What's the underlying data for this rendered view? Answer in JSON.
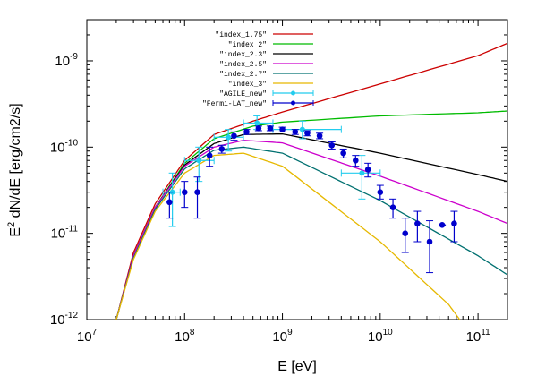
{
  "chart_data": {
    "type": "line",
    "xscale": "log",
    "yscale": "log",
    "xlabel": "E [eV]",
    "ylabel_base": "E",
    "ylabel_exp": "2",
    "ylabel_rest": " dN/dE [erg/cm2/s]",
    "xlim": [
      10000000.0,
      200000000000.0
    ],
    "ylim": [
      1e-12,
      3e-09
    ],
    "xticks": [
      {
        "value": 10000000.0,
        "base": "10",
        "exp": "7"
      },
      {
        "value": 100000000.0,
        "base": "10",
        "exp": "8"
      },
      {
        "value": 1000000000.0,
        "base": "10",
        "exp": "9"
      },
      {
        "value": 10000000000.0,
        "base": "10",
        "exp": "10"
      },
      {
        "value": 100000000000.0,
        "base": "10",
        "exp": "11"
      }
    ],
    "yticks": [
      {
        "value": 1e-12,
        "base": "10",
        "exp": "-12"
      },
      {
        "value": 1e-11,
        "base": "10",
        "exp": "-11"
      },
      {
        "value": 1e-10,
        "base": "10",
        "exp": "-10"
      },
      {
        "value": 1e-09,
        "base": "10",
        "exp": "-9"
      }
    ],
    "series": [
      {
        "name": "\"index_1.75\"",
        "color": "#cc0000",
        "points": [
          [
            20000000.0,
            1e-12
          ],
          [
            30000000.0,
            6e-12
          ],
          [
            50000000.0,
            2.2e-11
          ],
          [
            100000000.0,
            7e-11
          ],
          [
            200000000.0,
            1.4e-10
          ],
          [
            500000000.0,
            2e-10
          ],
          [
            1000000000.0,
            2.55e-10
          ],
          [
            10000000000.0,
            5.4e-10
          ],
          [
            100000000000.0,
            1.15e-09
          ],
          [
            200000000000.0,
            1.6e-09
          ]
        ]
      },
      {
        "name": "\"index_2\"",
        "color": "#00bb00",
        "points": [
          [
            20000000.0,
            1e-12
          ],
          [
            30000000.0,
            5.5e-12
          ],
          [
            50000000.0,
            2e-11
          ],
          [
            100000000.0,
            6.5e-11
          ],
          [
            200000000.0,
            1.25e-10
          ],
          [
            500000000.0,
            1.75e-10
          ],
          [
            1000000000.0,
            1.95e-10
          ],
          [
            10000000000.0,
            2.3e-10
          ],
          [
            100000000000.0,
            2.5e-10
          ],
          [
            200000000000.0,
            2.62e-10
          ]
        ]
      },
      {
        "name": "\"index_2.3\"",
        "color": "#000000",
        "points": [
          [
            20000000.0,
            1e-12
          ],
          [
            30000000.0,
            5.5e-12
          ],
          [
            50000000.0,
            2e-11
          ],
          [
            100000000.0,
            6.2e-11
          ],
          [
            200000000.0,
            1.1e-10
          ],
          [
            400000000.0,
            1.4e-10
          ],
          [
            1000000000.0,
            1.42e-10
          ],
          [
            10000000000.0,
            8.5e-11
          ],
          [
            100000000000.0,
            4.8e-11
          ],
          [
            200000000000.0,
            4e-11
          ]
        ]
      },
      {
        "name": "\"index_2.5\"",
        "color": "#cc00cc",
        "points": [
          [
            20000000.0,
            1e-12
          ],
          [
            30000000.0,
            5.5e-12
          ],
          [
            50000000.0,
            2e-11
          ],
          [
            100000000.0,
            6e-11
          ],
          [
            200000000.0,
            1e-10
          ],
          [
            400000000.0,
            1.2e-10
          ],
          [
            1000000000.0,
            1.12e-10
          ],
          [
            10000000000.0,
            4.6e-11
          ],
          [
            100000000000.0,
            1.8e-11
          ],
          [
            200000000000.0,
            1.3e-11
          ]
        ]
      },
      {
        "name": "\"index_2.7\"",
        "color": "#007070",
        "points": [
          [
            20000000.0,
            1e-12
          ],
          [
            30000000.0,
            5.2e-12
          ],
          [
            50000000.0,
            1.9e-11
          ],
          [
            100000000.0,
            5.6e-11
          ],
          [
            200000000.0,
            9.2e-11
          ],
          [
            400000000.0,
            1e-10
          ],
          [
            1000000000.0,
            8.5e-11
          ],
          [
            10000000000.0,
            2.4e-11
          ],
          [
            100000000000.0,
            5.5e-12
          ],
          [
            200000000000.0,
            3.3e-12
          ]
        ]
      },
      {
        "name": "\"index_3\"",
        "color": "#e6b800",
        "points": [
          [
            20000000.0,
            1e-12
          ],
          [
            30000000.0,
            5e-12
          ],
          [
            50000000.0,
            1.8e-11
          ],
          [
            100000000.0,
            5e-11
          ],
          [
            200000000.0,
            8e-11
          ],
          [
            400000000.0,
            8.5e-11
          ],
          [
            1000000000.0,
            6e-11
          ],
          [
            10000000000.0,
            8e-12
          ],
          [
            50000000000.0,
            1.5e-12
          ],
          [
            65000000000.0,
            1e-12
          ]
        ]
      }
    ],
    "agile": {
      "name": "\"AGILE_new\"",
      "color": "#22ccee",
      "points": [
        {
          "x": 75000000.0,
          "y": 3e-11,
          "xlo": 60000000.0,
          "xhi": 90000000.0,
          "ylo": 1.2e-11,
          "yhi": 5e-11
        },
        {
          "x": 140000000.0,
          "y": 7e-11,
          "xlo": 100000000.0,
          "xhi": 200000000.0,
          "ylo": 4e-11,
          "yhi": 1e-10
        },
        {
          "x": 280000000.0,
          "y": 1.3e-10,
          "xlo": 200000000.0,
          "xhi": 400000000.0,
          "ylo": 9e-11,
          "yhi": 1.6e-10
        },
        {
          "x": 550000000.0,
          "y": 1.9e-10,
          "xlo": 400000000.0,
          "xhi": 800000000.0,
          "ylo": 1.6e-10,
          "yhi": 2.3e-10
        },
        {
          "x": 1600000000.0,
          "y": 1.6e-10,
          "xlo": 800000000.0,
          "xhi": 4000000000.0,
          "ylo": 1.25e-10,
          "yhi": 2e-10
        },
        {
          "x": 6500000000.0,
          "y": 5e-11,
          "xlo": 4000000000.0,
          "xhi": 10000000000.0,
          "ylo": 2.5e-11,
          "yhi": 8e-11
        }
      ]
    },
    "fermi": {
      "name": "\"Fermi-LAT_new\"",
      "color": "#0000cc",
      "points": [
        {
          "x": 70000000.0,
          "y": 2.3e-11,
          "ylo": 1.5e-11,
          "yhi": 3e-11
        },
        {
          "x": 100000000.0,
          "y": 3e-11,
          "ylo": 2e-11,
          "yhi": 4e-11
        },
        {
          "x": 135000000.0,
          "y": 3e-11,
          "ylo": 1.5e-11,
          "yhi": 4.5e-11
        },
        {
          "x": 180000000.0,
          "y": 8e-11,
          "ylo": 6e-11,
          "yhi": 1e-10
        },
        {
          "x": 240000000.0,
          "y": 9.5e-11,
          "ylo": 8.5e-11,
          "yhi": 1.05e-10
        },
        {
          "x": 320000000.0,
          "y": 1.35e-10,
          "ylo": 1.2e-10,
          "yhi": 1.5e-10
        },
        {
          "x": 430000000.0,
          "y": 1.5e-10,
          "ylo": 1.4e-10,
          "yhi": 1.6e-10
        },
        {
          "x": 570000000.0,
          "y": 1.65e-10,
          "ylo": 1.55e-10,
          "yhi": 1.75e-10
        },
        {
          "x": 750000000.0,
          "y": 1.65e-10,
          "ylo": 1.55e-10,
          "yhi": 1.75e-10
        },
        {
          "x": 1000000000.0,
          "y": 1.6e-10,
          "ylo": 1.5e-10,
          "yhi": 1.7e-10
        },
        {
          "x": 1350000000.0,
          "y": 1.5e-10,
          "ylo": 1.4e-10,
          "yhi": 1.6e-10
        },
        {
          "x": 1800000000.0,
          "y": 1.45e-10,
          "ylo": 1.35e-10,
          "yhi": 1.55e-10
        },
        {
          "x": 2400000000.0,
          "y": 1.35e-10,
          "ylo": 1.25e-10,
          "yhi": 1.45e-10
        },
        {
          "x": 3200000000.0,
          "y": 1.05e-10,
          "ylo": 9.5e-11,
          "yhi": 1.15e-10
        },
        {
          "x": 4200000000.0,
          "y": 8.5e-11,
          "ylo": 7.5e-11,
          "yhi": 9.5e-11
        },
        {
          "x": 5600000000.0,
          "y": 7e-11,
          "ylo": 6e-11,
          "yhi": 8e-11
        },
        {
          "x": 7500000000.0,
          "y": 5.5e-11,
          "ylo": 4.5e-11,
          "yhi": 6.5e-11
        },
        {
          "x": 10000000000.0,
          "y": 3e-11,
          "ylo": 2.5e-11,
          "yhi": 3.6e-11
        },
        {
          "x": 13500000000.0,
          "y": 2e-11,
          "ylo": 1.5e-11,
          "yhi": 2.5e-11
        },
        {
          "x": 18000000000.0,
          "y": 1e-11,
          "ylo": 6e-12,
          "yhi": 1.5e-11
        },
        {
          "x": 24000000000.0,
          "y": 1.3e-11,
          "ylo": 8e-12,
          "yhi": 1.8e-11
        },
        {
          "x": 32000000000.0,
          "y": 8e-12,
          "ylo": 3.5e-12,
          "yhi": 1.4e-11
        },
        {
          "x": 43000000000.0,
          "y": 1.25e-11,
          "ylo": 1.25e-11,
          "yhi": 1.25e-11
        },
        {
          "x": 57000000000.0,
          "y": 1.3e-11,
          "ylo": 8e-12,
          "yhi": 1.8e-11
        }
      ]
    }
  }
}
